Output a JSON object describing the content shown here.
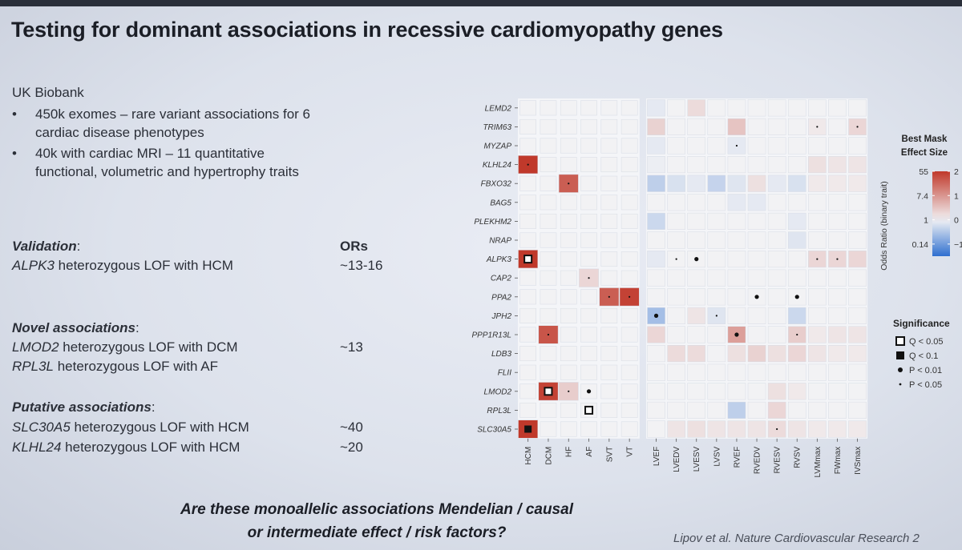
{
  "slide": {
    "title": "Testing for dominant associations in recessive cardiomyopathy genes",
    "dataset": {
      "heading": "UK Biobank",
      "bullets": [
        {
          "line1": "450k exomes – rare variant associations for 6",
          "line2": "cardiac disease phenotypes"
        },
        {
          "line1": "40k with cardiac MRI – 11 quantitative",
          "line2": "functional, volumetric and hypertrophy traits"
        }
      ]
    },
    "colon": ":",
    "ors_header": "ORs",
    "validation": {
      "heading": "Validation",
      "items": [
        {
          "gene": "ALPK3",
          "text": " heterozygous LOF with HCM",
          "or": "~13-16"
        }
      ]
    },
    "novel": {
      "heading": "Novel associations",
      "items": [
        {
          "gene": "LMOD2",
          "text": " heterozygous LOF with DCM",
          "or": "~13"
        },
        {
          "gene": "RPL3L",
          "text": " heterozygous LOF with AF",
          "or": ""
        }
      ]
    },
    "putative": {
      "heading": "Putative associations",
      "items": [
        {
          "gene": "SLC30A5",
          "text": " heterozygous LOF with HCM",
          "or": "~40"
        },
        {
          "gene": "KLHL24",
          "text": " heterozygous LOF with HCM",
          "or": "~20"
        }
      ]
    },
    "question": [
      "Are these monoallelic associations Mendelian / causal",
      "or intermediate effect / risk factors?"
    ],
    "citation": "Lipov et al. Nature Cardiovascular Research 2"
  },
  "chart_data": {
    "type": "heatmap",
    "rows": [
      "LEMD2",
      "TRIM63",
      "MYZAP",
      "KLHL24",
      "FBXO32",
      "BAG5",
      "PLEKHM2",
      "NRAP",
      "ALPK3",
      "CAP2",
      "PPA2",
      "JPH2",
      "PPP1R13L",
      "LDB3",
      "FLII",
      "LMOD2",
      "RPL3L",
      "SLC30A5"
    ],
    "binary_columns": [
      "HCM",
      "DCM",
      "HF",
      "AF",
      "SVT",
      "VT"
    ],
    "quant_columns": [
      "LVEF",
      "LVEDV",
      "LVESV",
      "LVSV",
      "RVEF",
      "RVEDV",
      "RVESV",
      "RVSV",
      "LVMmax",
      "FWmax",
      "IVSmax"
    ],
    "binary_values": [
      [
        0,
        0,
        0,
        0,
        0,
        0
      ],
      [
        0,
        0,
        0,
        0,
        0,
        0
      ],
      [
        0,
        0,
        0,
        0,
        0,
        0
      ],
      [
        2.1,
        0,
        0,
        0,
        0,
        0
      ],
      [
        0,
        0,
        1.6,
        0,
        0,
        0
      ],
      [
        0,
        0,
        0,
        0,
        0,
        0
      ],
      [
        0,
        0,
        0,
        0,
        0,
        0
      ],
      [
        0,
        0,
        0,
        0,
        0,
        0
      ],
      [
        2.1,
        0,
        0,
        0,
        0,
        0
      ],
      [
        0,
        0,
        0,
        0.3,
        0,
        0
      ],
      [
        0,
        0,
        0,
        0,
        1.6,
        1.9
      ],
      [
        0,
        0,
        0,
        0,
        0,
        0
      ],
      [
        0,
        1.7,
        0,
        0,
        0,
        0
      ],
      [
        0,
        0,
        0,
        0,
        0,
        0
      ],
      [
        0,
        0,
        0,
        0,
        0,
        0
      ],
      [
        0,
        1.9,
        0.4,
        0,
        0,
        0
      ],
      [
        0,
        0,
        0,
        0,
        0,
        0
      ],
      [
        2.3,
        0,
        0,
        0,
        0,
        0
      ]
    ],
    "quant_values": [
      [
        -0.1,
        0,
        0.25,
        0,
        0,
        0,
        0,
        0,
        0,
        0,
        0
      ],
      [
        0.35,
        0,
        0,
        0,
        0.5,
        0,
        0,
        0,
        0.1,
        0,
        0.3
      ],
      [
        -0.1,
        0,
        0,
        0,
        -0.1,
        0,
        0,
        0,
        0,
        0,
        0
      ],
      [
        -0.05,
        0,
        0,
        0,
        0,
        0,
        0,
        0,
        0.2,
        0.15,
        0.15
      ],
      [
        -0.4,
        -0.2,
        -0.1,
        -0.35,
        -0.15,
        0.2,
        -0.1,
        -0.2,
        0.1,
        0.1,
        0.1
      ],
      [
        0,
        0,
        0,
        0,
        -0.1,
        -0.1,
        0,
        0,
        0,
        0,
        0
      ],
      [
        -0.3,
        0,
        0,
        0,
        0,
        0,
        0,
        -0.1,
        0,
        0,
        0
      ],
      [
        0,
        0,
        0,
        0,
        0,
        0,
        0,
        -0.15,
        0,
        0,
        0
      ],
      [
        -0.1,
        0,
        0,
        0,
        0,
        0,
        0,
        0,
        0.3,
        0.3,
        0.3
      ],
      [
        0,
        0,
        0,
        0,
        0,
        0,
        0,
        0,
        0,
        0,
        0
      ],
      [
        0,
        0,
        0,
        0,
        0,
        0,
        0,
        0,
        0,
        0,
        0
      ],
      [
        -0.6,
        0,
        0.15,
        -0.15,
        0,
        0,
        0,
        -0.3,
        0,
        0,
        0
      ],
      [
        0.3,
        0,
        0,
        0,
        0.9,
        0,
        0,
        0.4,
        0.1,
        0.15,
        0.15
      ],
      [
        0,
        0.25,
        0.25,
        0,
        0.2,
        0.35,
        0.2,
        0.3,
        0.15,
        0.1,
        0.1
      ],
      [
        0,
        0,
        0,
        0,
        0,
        0,
        0,
        0,
        0,
        0,
        0
      ],
      [
        0,
        0,
        0,
        0,
        0,
        0,
        0.2,
        0.1,
        0,
        0,
        0
      ],
      [
        0,
        0,
        0,
        0,
        -0.4,
        0,
        0.3,
        0,
        0,
        0,
        0
      ],
      [
        0,
        0.15,
        0.2,
        0.15,
        0.15,
        0.15,
        0.25,
        0.15,
        0.1,
        0.1,
        0.1
      ]
    ],
    "significance_marks": [
      {
        "row": "TRIM63",
        "col": "LVMmax",
        "sig": "P < 0.05"
      },
      {
        "row": "TRIM63",
        "col": "IVSmax",
        "sig": "P < 0.05"
      },
      {
        "row": "MYZAP",
        "col": "RVEF",
        "sig": "P < 0.05"
      },
      {
        "row": "KLHL24",
        "col": "HCM",
        "sig": "P < 0.05"
      },
      {
        "row": "FBXO32",
        "col": "HF",
        "sig": "P < 0.05"
      },
      {
        "row": "ALPK3",
        "col": "HCM",
        "sig": "Q < 0.05"
      },
      {
        "row": "ALPK3",
        "col": "LVEDV",
        "sig": "P < 0.05"
      },
      {
        "row": "ALPK3",
        "col": "LVESV",
        "sig": "P < 0.01"
      },
      {
        "row": "ALPK3",
        "col": "LVMmax",
        "sig": "P < 0.05"
      },
      {
        "row": "ALPK3",
        "col": "FWmax",
        "sig": "P < 0.05"
      },
      {
        "row": "CAP2",
        "col": "AF",
        "sig": "P < 0.05"
      },
      {
        "row": "PPA2",
        "col": "SVT",
        "sig": "P < 0.05"
      },
      {
        "row": "PPA2",
        "col": "VT",
        "sig": "P < 0.05"
      },
      {
        "row": "PPA2",
        "col": "RVEDV",
        "sig": "P < 0.01"
      },
      {
        "row": "PPA2",
        "col": "RVSV",
        "sig": "P < 0.01"
      },
      {
        "row": "JPH2",
        "col": "LVEF",
        "sig": "P < 0.01"
      },
      {
        "row": "JPH2",
        "col": "LVSV",
        "sig": "P < 0.05"
      },
      {
        "row": "PPP1R13L",
        "col": "DCM",
        "sig": "P < 0.05"
      },
      {
        "row": "PPP1R13L",
        "col": "RVEF",
        "sig": "P < 0.01"
      },
      {
        "row": "PPP1R13L",
        "col": "RVSV",
        "sig": "P < 0.05"
      },
      {
        "row": "LMOD2",
        "col": "DCM",
        "sig": "Q < 0.05"
      },
      {
        "row": "LMOD2",
        "col": "HF",
        "sig": "P < 0.05"
      },
      {
        "row": "LMOD2",
        "col": "AF",
        "sig": "P < 0.01"
      },
      {
        "row": "RPL3L",
        "col": "AF",
        "sig": "Q < 0.05"
      },
      {
        "row": "SLC30A5",
        "col": "HCM",
        "sig": "Q < 0.1"
      },
      {
        "row": "SLC30A5",
        "col": "RVESV",
        "sig": "P < 0.05"
      }
    ],
    "colorbar": {
      "title": [
        "Best Mask",
        "Effect Size"
      ],
      "left_axis_label": "Odds Ratio (binary trait)",
      "left_ticks": [
        "55",
        "7.4",
        "1",
        "0.14"
      ],
      "right_ticks": [
        "2",
        "1",
        "0",
        "−1"
      ],
      "range": [
        -1.5,
        2
      ]
    },
    "significance_legend": {
      "title": "Significance",
      "items": [
        "Q < 0.05",
        "Q < 0.1",
        "P < 0.01",
        "P < 0.05"
      ]
    },
    "colors": {
      "high": "#c0392b",
      "mid": "#f2f2f4",
      "low": "#2f6fd0",
      "panel_bg": "#f4f5f8",
      "grid": "#d6dbe4"
    }
  }
}
